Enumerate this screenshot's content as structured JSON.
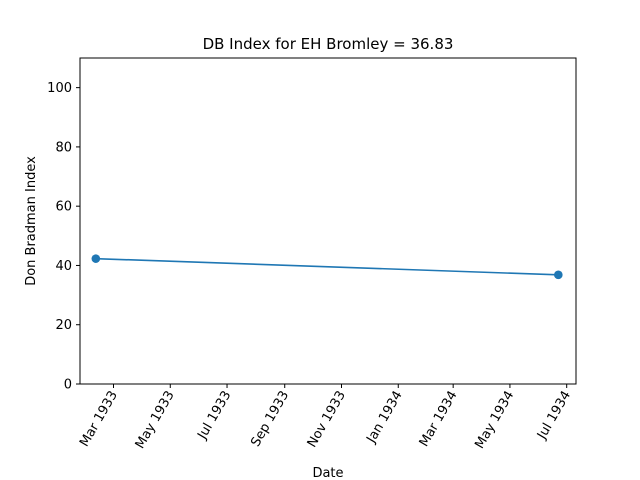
{
  "chart_data": {
    "type": "line",
    "title": "DB Index for EH Bromley = 36.83",
    "xlabel": "Date",
    "ylabel": "Don Bradman Index",
    "ylim": [
      0,
      110
    ],
    "y_ticks": [
      0,
      20,
      40,
      60,
      80,
      100
    ],
    "x_ticks": [
      {
        "date": "1933-03-01",
        "label": "Mar 1933"
      },
      {
        "date": "1933-05-01",
        "label": "May 1933"
      },
      {
        "date": "1933-07-01",
        "label": "Jul 1933"
      },
      {
        "date": "1933-09-01",
        "label": "Sep 1933"
      },
      {
        "date": "1933-11-01",
        "label": "Nov 1933"
      },
      {
        "date": "1934-01-01",
        "label": "Jan 1934"
      },
      {
        "date": "1934-03-01",
        "label": "Mar 1934"
      },
      {
        "date": "1934-05-01",
        "label": "May 1934"
      },
      {
        "date": "1934-07-01",
        "label": "Jul 1934"
      }
    ],
    "xlim": [
      "1933-01-24",
      "1934-07-11"
    ],
    "series": [
      {
        "color": "#1f77b4",
        "points": [
          {
            "x": "1933-02-10",
            "y": 42.3
          },
          {
            "x": "1934-06-22",
            "y": 36.83
          }
        ]
      }
    ],
    "grid": false,
    "legend": "none"
  }
}
